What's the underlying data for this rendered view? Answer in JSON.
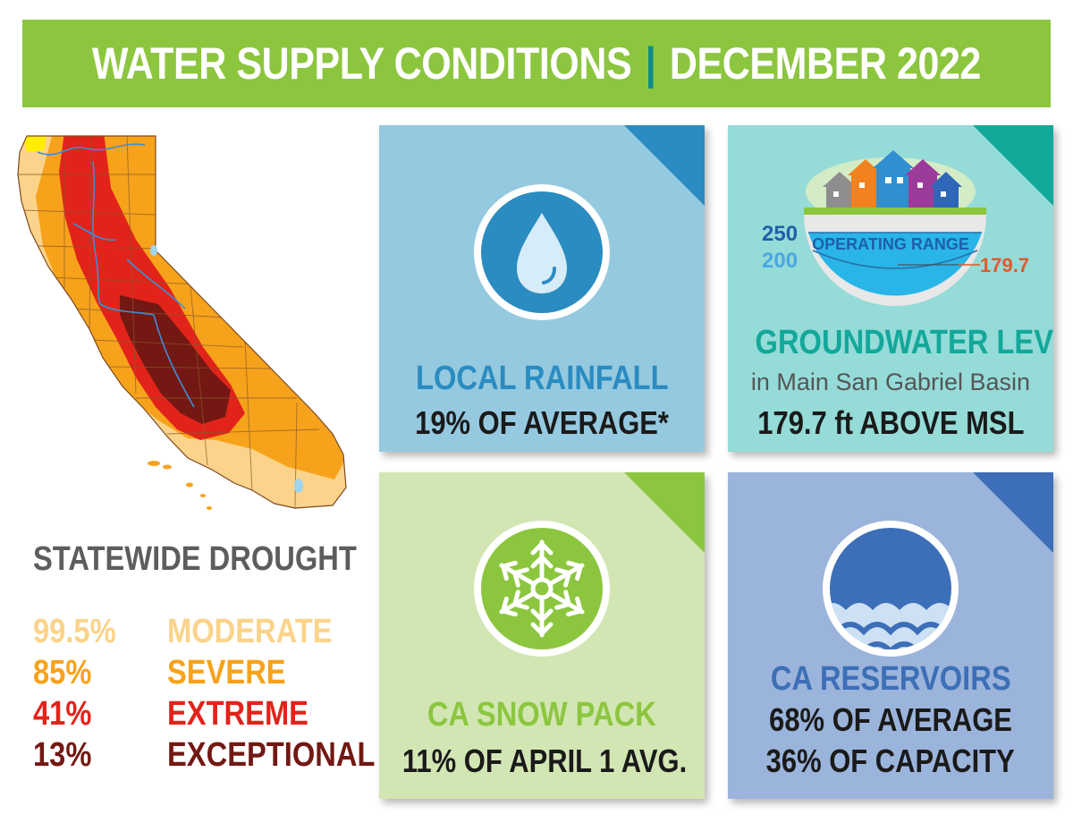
{
  "banner": {
    "left": "WATER SUPPLY CONDITIONS",
    "separator": "|",
    "right": "DECEMBER 2022"
  },
  "drought": {
    "title": "STATEWIDE DROUGHT",
    "levels": [
      {
        "percent": "99.5%",
        "label": "MODERATE",
        "color": "#fbd38a"
      },
      {
        "percent": "85%",
        "label": "SEVERE",
        "color": "#f7a21b"
      },
      {
        "percent": "41%",
        "label": "EXTREME",
        "color": "#e2231a"
      },
      {
        "percent": "13%",
        "label": "EXCEPTIONAL",
        "color": "#731813"
      }
    ]
  },
  "cards": {
    "rainfall": {
      "title": "LOCAL RAINFALL",
      "value": "19% OF AVERAGE*",
      "bg": "#95c9e0",
      "accent": "#2a8cc1",
      "icon": "water-drop-icon"
    },
    "groundwater": {
      "title": "GROUNDWATER LEVEL",
      "subtitle": "in Main San Gabriel Basin",
      "value": "179.7 ft ABOVE MSL",
      "bg": "#95dbd8",
      "accent": "#12a89a",
      "gauge": {
        "label": "OPERATING RANGE",
        "upper": "250",
        "lower": "200",
        "current": "179.7"
      }
    },
    "snowpack": {
      "title": "CA SNOW PACK",
      "value": "11% OF APRIL 1 AVG.",
      "bg": "#d2e6b3",
      "accent": "#8cc63f",
      "title_color": "#8cc63f",
      "icon": "snowflake-icon"
    },
    "reservoirs": {
      "title": "CA RESERVOIRS",
      "value_1": "68% OF AVERAGE",
      "value_2": "36% OF CAPACITY",
      "bg": "#9bb4db",
      "accent": "#3c6fb7",
      "icon": "waves-icon"
    }
  }
}
